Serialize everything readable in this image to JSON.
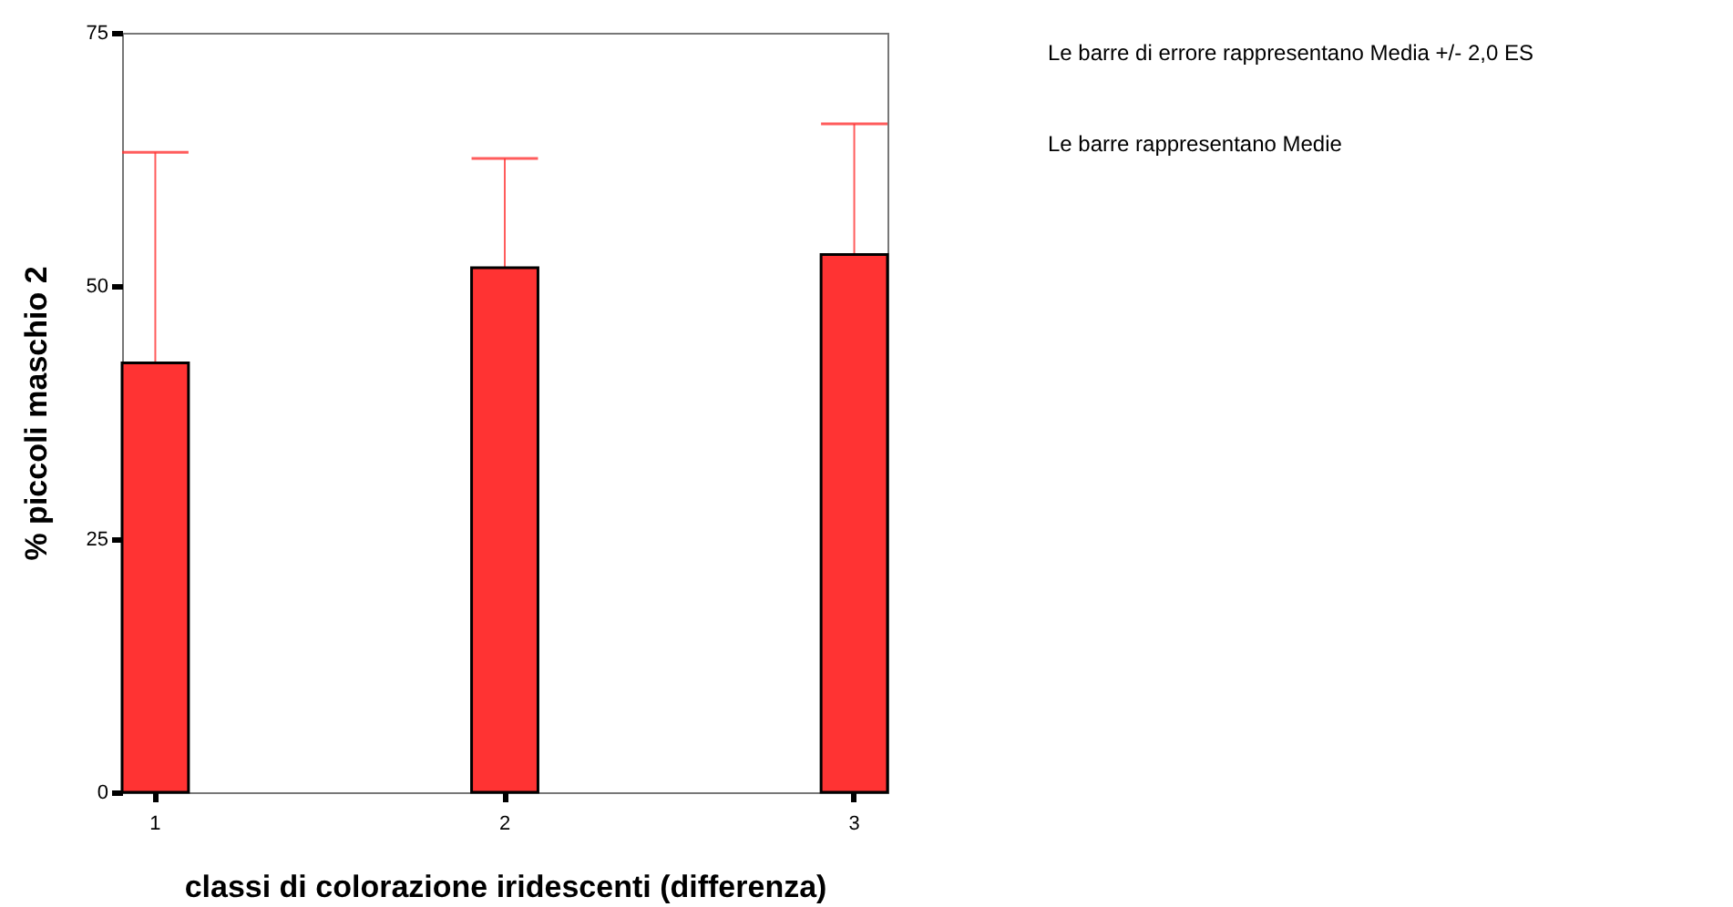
{
  "chart_data": {
    "type": "bar",
    "xlabel": "classi di colorazione iridescenti (differenza)",
    "ylabel": "% piccoli maschio 2",
    "categories": [
      "1",
      "2",
      "3"
    ],
    "values": [
      42.4,
      51.8,
      53.1
    ],
    "errors": [
      20.8,
      10.8,
      12.9
    ],
    "color": "#ff3333",
    "ylim": [
      0,
      75
    ],
    "yticks": [
      0,
      25,
      50,
      75
    ],
    "grid": false,
    "annotations": [
      "Le barre di errore rappresentano Media +/- 2,0 ES",
      "Le barre rappresentano Medie"
    ]
  }
}
